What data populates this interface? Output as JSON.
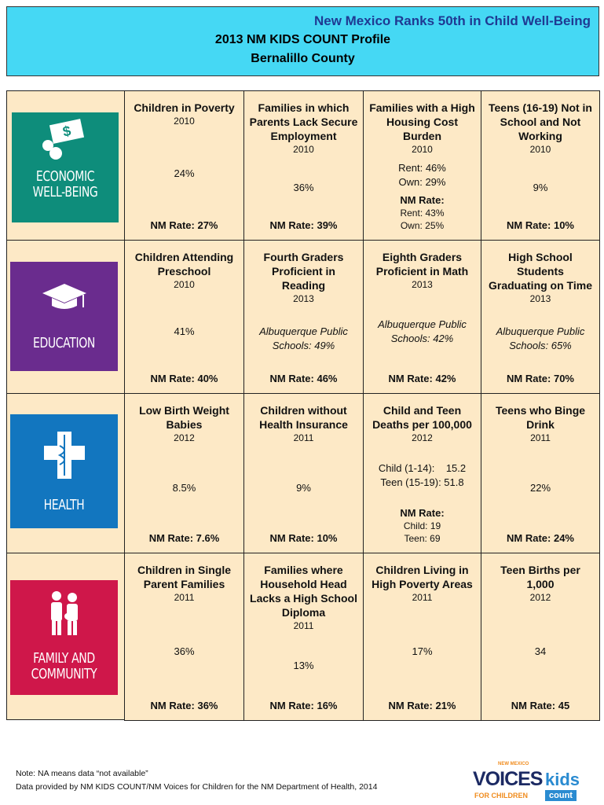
{
  "header": {
    "headline": "New Mexico Ranks 50th in Child Well-Being",
    "title": "2013 NM KIDS COUNT Profile",
    "county": "Bernalillo County"
  },
  "rows": [
    {
      "domain": [
        "ECONOMIC",
        "WELL-BEING"
      ],
      "cells": [
        {
          "title": "Children in Poverty",
          "year": "2010",
          "value": [
            "24%"
          ],
          "nm": "NM Rate: 27%"
        },
        {
          "title": "Families in which Parents Lack Secure Employment",
          "year": "2010",
          "value": [
            "36%"
          ],
          "nm": "NM Rate: 39%"
        },
        {
          "title": "Families with a High Housing Cost Burden",
          "year": "2010",
          "value": [
            "Rent: 46%",
            "Own: 29%"
          ],
          "nm": "NM Rate:",
          "nm_detail": [
            "Rent: 43%",
            "Own: 25%"
          ]
        },
        {
          "title": "Teens (16-19) Not in School and Not Working",
          "year": "2010",
          "value": [
            "9%"
          ],
          "nm": "NM Rate: 10%"
        }
      ]
    },
    {
      "domain": [
        "EDUCATION"
      ],
      "cells": [
        {
          "title": "Children Attending Preschool",
          "year": "2010",
          "value": [
            "41%"
          ],
          "nm": "NM Rate: 40%"
        },
        {
          "title": "Fourth Graders Proficient in Reading",
          "year": "2013",
          "district": "Albuquerque Public Schools: 49%",
          "nm": "NM Rate: 46%"
        },
        {
          "title": "Eighth Graders Proficient in Math",
          "year": "2013",
          "district": "Albuquerque Public Schools: 42%",
          "nm": "NM Rate: 42%"
        },
        {
          "title": "High School Students Graduating on Time",
          "year": "2013",
          "district": "Albuquerque Public Schools: 65%",
          "nm": "NM Rate: 70%"
        }
      ]
    },
    {
      "domain": [
        "HEALTH"
      ],
      "cells": [
        {
          "title": "Low Birth Weight Babies",
          "year": "2012",
          "value": [
            "8.5%"
          ],
          "nm": "NM Rate: 7.6%"
        },
        {
          "title": "Children without Health Insurance",
          "year": "2011",
          "value": [
            "9%"
          ],
          "nm": "NM Rate: 10%"
        },
        {
          "title": "Child and Teen Deaths per 100,000",
          "year": "2012",
          "value": [
            "Child (1-14):    15.2",
            "Teen (15-19): 51.8"
          ],
          "nm": "NM Rate:",
          "nm_detail": [
            "Child: 19",
            "Teen: 69"
          ]
        },
        {
          "title": "Teens who Binge Drink",
          "year": "2011",
          "value": [
            "22%"
          ],
          "nm": "NM Rate: 24%"
        }
      ]
    },
    {
      "domain": [
        "FAMILY AND",
        "COMMUNITY"
      ],
      "cells": [
        {
          "title": "Children in Single Parent Families",
          "year": "2011",
          "value": [
            "36%"
          ],
          "nm": "NM Rate: 36%"
        },
        {
          "title": "Families where Household Head Lacks a High School Diploma",
          "year": "2011",
          "value": [
            "13%"
          ],
          "nm": "NM Rate: 16%"
        },
        {
          "title": "Children Living in High Poverty Areas",
          "year": "2011",
          "value": [
            "17%"
          ],
          "nm": "NM Rate: 21%"
        },
        {
          "title": "Teen Births per 1,000",
          "year": "2012",
          "value": [
            "34"
          ],
          "nm": "NM Rate: 45"
        }
      ]
    }
  ],
  "footer": {
    "notes": [
      "Note: NA means data “not available”",
      "Data provided by NM KIDS COUNT/NM Voices for Children for the NM Department of Health, 2014"
    ],
    "logo": {
      "region": "NEW MEXICO",
      "name": "VOICES",
      "kids": "kids",
      "tagline": "FOR CHILDREN",
      "count": "count"
    }
  }
}
